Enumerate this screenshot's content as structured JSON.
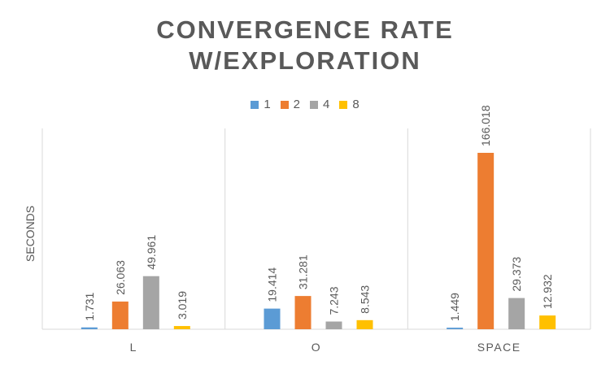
{
  "chart_data": {
    "type": "bar",
    "title_lines": [
      "CONVERGENCE RATE",
      "W/EXPLORATION"
    ],
    "xlabel": "",
    "ylabel": "SECONDS",
    "categories": [
      "L",
      "O",
      "SPACE"
    ],
    "series": [
      {
        "name": "1",
        "color": "#5B9BD5",
        "values": [
          1.731,
          19.414,
          1.449
        ]
      },
      {
        "name": "2",
        "color": "#ED7D31",
        "values": [
          26.063,
          31.281,
          166.018
        ]
      },
      {
        "name": "4",
        "color": "#A5A5A5",
        "values": [
          49.961,
          7.243,
          29.373
        ]
      },
      {
        "name": "8",
        "color": "#FFC000",
        "values": [
          3.019,
          8.543,
          12.932
        ]
      }
    ],
    "value_labels": {
      "L": [
        "1.731",
        "26.063",
        "49.961",
        "3.019"
      ],
      "O": [
        "19.414",
        "31.281",
        "7.243",
        "8.543"
      ],
      "SPACE": [
        "1.449",
        "166.018",
        "29.373",
        "12.932"
      ]
    },
    "legend_position": "top",
    "grid": "vertical category separators",
    "ylim": [
      0,
      166.018
    ]
  }
}
